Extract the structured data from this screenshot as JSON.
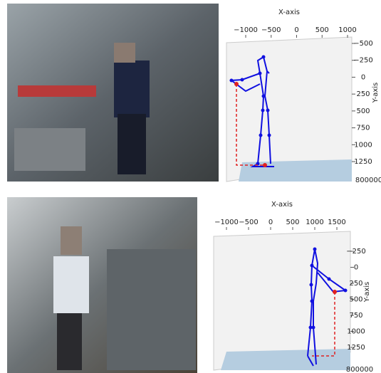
{
  "chart_data": [
    {
      "type": "pose3d",
      "x_label": "X-axis",
      "y_label": "Y-axis",
      "offset_text": "800000",
      "xlim": [
        -1378,
        1084
      ],
      "xticks": [
        {
          "value": -1000,
          "label": "−1000"
        },
        {
          "value": -500,
          "label": "−500"
        },
        0,
        500,
        1000
      ],
      "ylim": [
        -595,
        1545
      ],
      "yticks": [
        {
          "value": -500,
          "label": "−500"
        },
        {
          "value": -250,
          "label": "−250"
        },
        0,
        250,
        500,
        750,
        1000,
        1250
      ]
    },
    {
      "type": "pose3d",
      "x_label": "X-axis",
      "y_label": "Y-axis",
      "offset_text": "800000",
      "xlim": [
        -1290,
        1806
      ],
      "xticks": [
        {
          "value": -1000,
          "label": "−1000"
        },
        {
          "value": -500,
          "label": "−500"
        },
        0,
        500,
        1000,
        1500
      ],
      "ylim": [
        -561,
        1606
      ],
      "yticks": [
        {
          "value": -250,
          "label": "−250"
        },
        0,
        250,
        500,
        750,
        1000,
        1250
      ]
    }
  ]
}
